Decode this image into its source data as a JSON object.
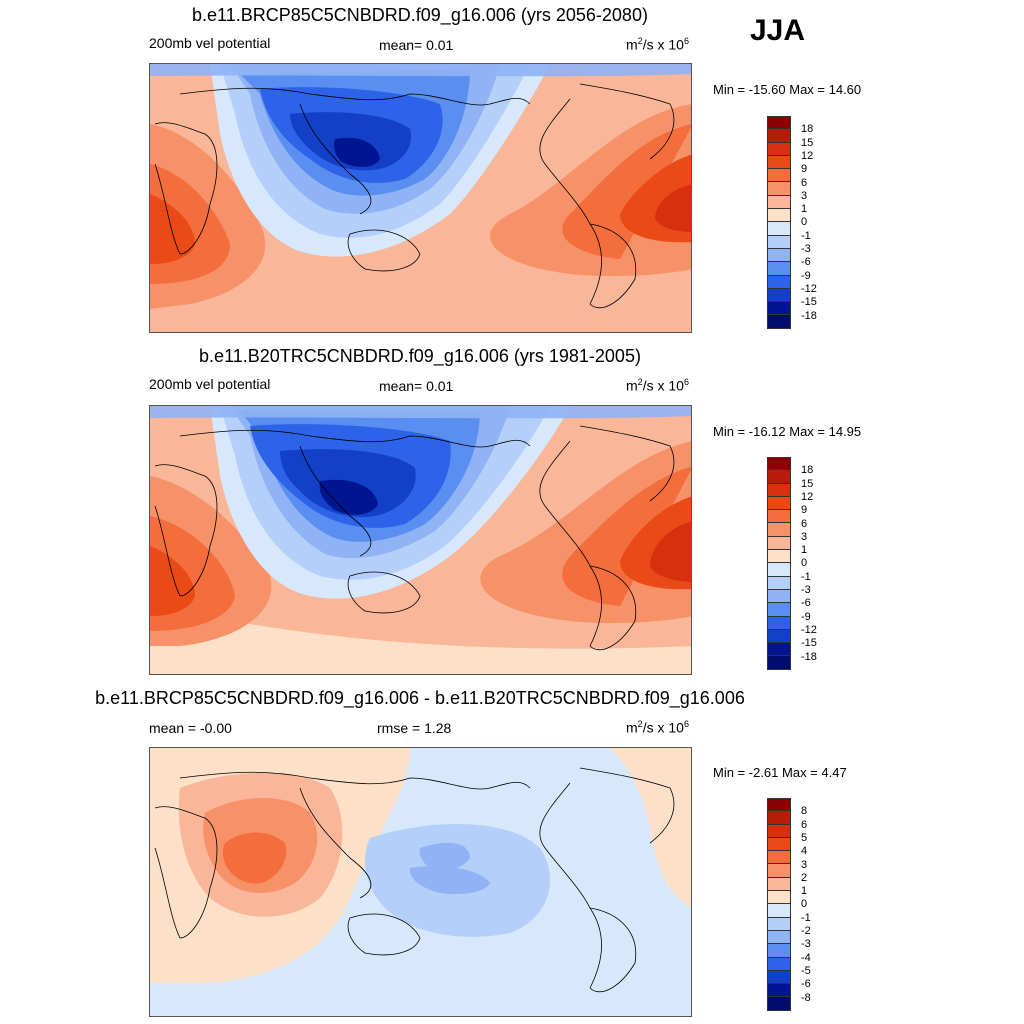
{
  "season": "JJA",
  "panels": [
    {
      "title": "b.e11.BRCP85C5CNBDRD.f09_g16.006 (yrs 2056-2080)",
      "left_label": "200mb vel potential",
      "center_label": "mean=   0.01",
      "units": "m",
      "units_sup": "2",
      "units_tail": "/s x 10",
      "units_exp": "6",
      "minmax": "Min = -15.60 Max =  14.60",
      "colorbar_levels": [
        "18",
        "15",
        "12",
        "9",
        "6",
        "3",
        "1",
        "0",
        "-1",
        "-3",
        "-6",
        "-9",
        "-12",
        "-15",
        "-18"
      ]
    },
    {
      "title": "b.e11.B20TRC5CNBDRD.f09_g16.006 (yrs 1981-2005)",
      "left_label": "200mb vel potential",
      "center_label": "mean=   0.01",
      "units": "m",
      "units_sup": "2",
      "units_tail": "/s x 10",
      "units_exp": "6",
      "minmax": "Min = -16.12 Max =  14.95",
      "colorbar_levels": [
        "18",
        "15",
        "12",
        "9",
        "6",
        "3",
        "1",
        "0",
        "-1",
        "-3",
        "-6",
        "-9",
        "-12",
        "-15",
        "-18"
      ]
    },
    {
      "title": "b.e11.BRCP85C5CNBDRD.f09_g16.006 - b.e11.B20TRC5CNBDRD.f09_g16.006",
      "left_label": "mean =  -0.00",
      "center_label": "rmse =   1.28",
      "units": "m",
      "units_sup": "2",
      "units_tail": "/s x 10",
      "units_exp": "6",
      "minmax": "Min =  -2.61 Max =   4.47",
      "colorbar_levels": [
        "8",
        "6",
        "5",
        "4",
        "3",
        "2",
        "1",
        "0",
        "-1",
        "-2",
        "-3",
        "-4",
        "-5",
        "-6",
        "-8"
      ]
    }
  ],
  "colorbar_colors": [
    "#8b0000",
    "#b51d0a",
    "#d6300e",
    "#ea4a16",
    "#f46d3c",
    "#f79168",
    "#f9b699",
    "#fde0c8",
    "#d8e8fc",
    "#b4d0fa",
    "#8fb3f5",
    "#5a8ef0",
    "#2d63e8",
    "#1440c8",
    "#001590",
    "#000b6e"
  ]
}
